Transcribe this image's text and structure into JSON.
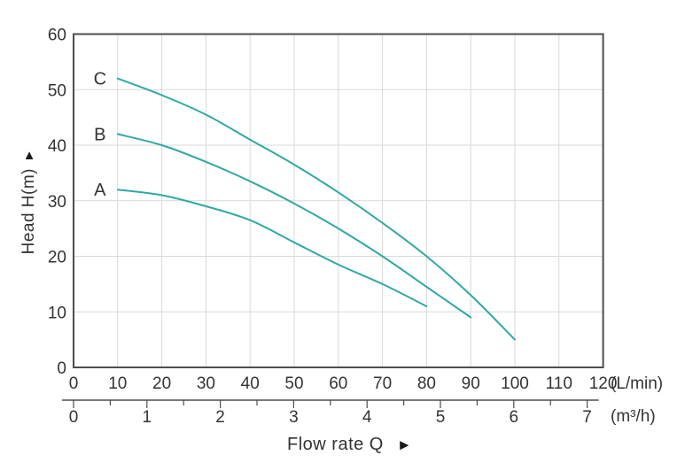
{
  "chart_data": {
    "type": "line",
    "title": "",
    "xlabel": "Flow rate Q",
    "ylabel": "Head H(m)",
    "grid": true,
    "legend_position": "labels-at-curve-start",
    "x_axis_primary": {
      "unit": "(L/min)",
      "min": 0,
      "max": 120,
      "tick_step": 10
    },
    "x_axis_secondary": {
      "unit": "(m³/h)",
      "min": 0,
      "max": 7,
      "tick_step": 1,
      "minor_tick_step": 0.5
    },
    "y_axis": {
      "min": 0,
      "max": 60,
      "tick_step": 10
    },
    "series": [
      {
        "name": "A",
        "points": [
          [
            10,
            32
          ],
          [
            20,
            31
          ],
          [
            30,
            29
          ],
          [
            40,
            26.5
          ],
          [
            50,
            22.5
          ],
          [
            60,
            18.5
          ],
          [
            70,
            15
          ],
          [
            80,
            11
          ]
        ]
      },
      {
        "name": "B",
        "points": [
          [
            10,
            42
          ],
          [
            20,
            40
          ],
          [
            30,
            37
          ],
          [
            40,
            33.5
          ],
          [
            50,
            29.5
          ],
          [
            60,
            25
          ],
          [
            70,
            20
          ],
          [
            80,
            14.5
          ],
          [
            90,
            9
          ]
        ]
      },
      {
        "name": "C",
        "points": [
          [
            10,
            52
          ],
          [
            20,
            49
          ],
          [
            30,
            45.5
          ],
          [
            40,
            41
          ],
          [
            50,
            36.5
          ],
          [
            60,
            31.5
          ],
          [
            70,
            26
          ],
          [
            80,
            20
          ],
          [
            90,
            13
          ],
          [
            100,
            5
          ]
        ]
      }
    ],
    "colors": {
      "curve": "#2fa9a4",
      "grid": "#d9d9d9",
      "axis": "#4d4d4d",
      "text": "#333333"
    }
  },
  "icons": {
    "y_axis_arrow_up": "▲",
    "x_axis_arrow_right": "►"
  }
}
